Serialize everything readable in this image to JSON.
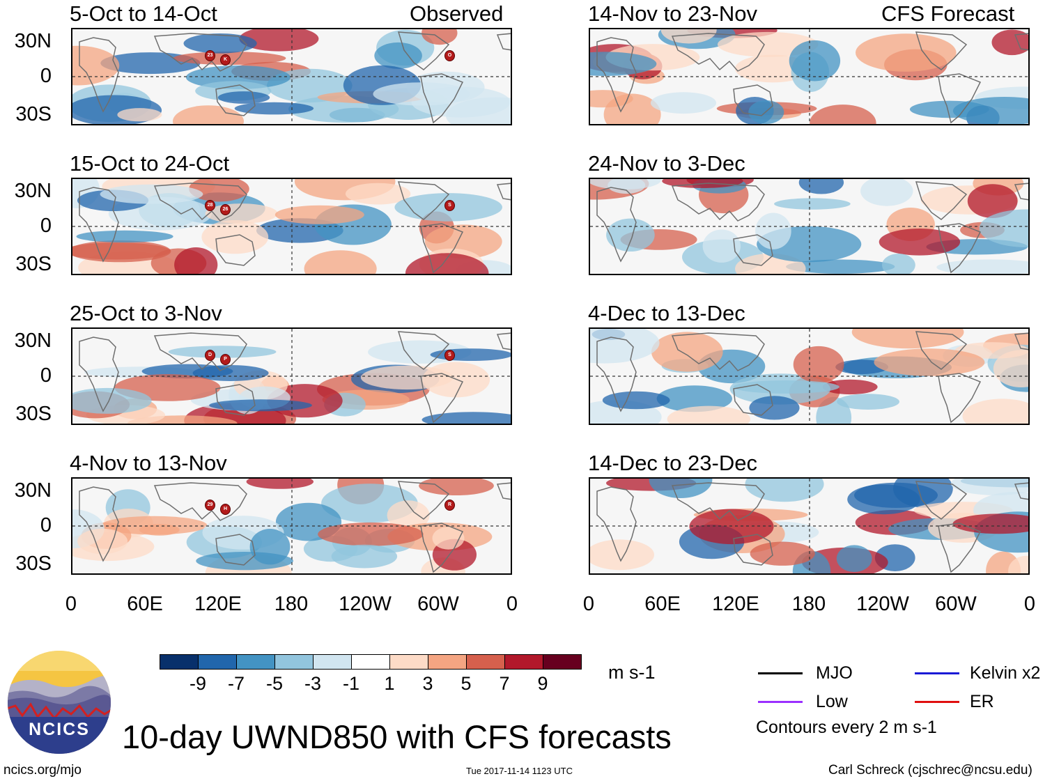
{
  "panels": {
    "left": [
      {
        "title": "5-Oct to 14-Oct",
        "label": "Observed",
        "storms": [
          "23",
          "K",
          "O"
        ]
      },
      {
        "title": "15-Oct to 24-Oct",
        "label": "",
        "storms": [
          "28",
          "26",
          "S"
        ]
      },
      {
        "title": "25-Oct to 3-Nov",
        "label": "",
        "storms": [
          "D",
          "P",
          "S"
        ]
      },
      {
        "title": "4-Nov to 13-Nov",
        "label": "",
        "storms": [
          "29",
          "H",
          "R"
        ]
      }
    ],
    "right": [
      {
        "title": "14-Nov to 23-Nov",
        "label": "CFS Forecast"
      },
      {
        "title": "24-Nov to 3-Dec",
        "label": ""
      },
      {
        "title": "4-Dec to 13-Dec",
        "label": ""
      },
      {
        "title": "14-Dec to 23-Dec",
        "label": ""
      }
    ]
  },
  "axes": {
    "y_labels": [
      "30N",
      "0",
      "30S"
    ],
    "x_labels": [
      "0",
      "60E",
      "120E",
      "180",
      "120W",
      "60W",
      "0"
    ]
  },
  "colorbar": {
    "colors": [
      "#08306b",
      "#2166ac",
      "#4393c3",
      "#92c5de",
      "#d1e5f0",
      "#ffffff",
      "#fddbc7",
      "#f4a582",
      "#d6604d",
      "#b2182b",
      "#67001f"
    ],
    "labels": [
      "-9",
      "-7",
      "-5",
      "-3",
      "-1",
      "1",
      "3",
      "5",
      "7",
      "9"
    ],
    "units": "m s-1"
  },
  "legend": {
    "items": [
      {
        "label": "MJO",
        "color": "#000000"
      },
      {
        "label": "Kelvin x2",
        "color": "#1a1ad6"
      },
      {
        "label": "Low",
        "color": "#9b30ff"
      },
      {
        "label": "ER",
        "color": "#e01010"
      }
    ],
    "contours_note": "Contours every 2 m s-1"
  },
  "logo": {
    "text": "NCICS"
  },
  "main_title": "10-day UWND850 with CFS forecasts",
  "footer": {
    "url": "ncics.org/mjo",
    "timestamp": "Tue 2017-11-14 1123 UTC",
    "credit": "Carl Schreck (cjschrec@ncsu.edu)"
  }
}
